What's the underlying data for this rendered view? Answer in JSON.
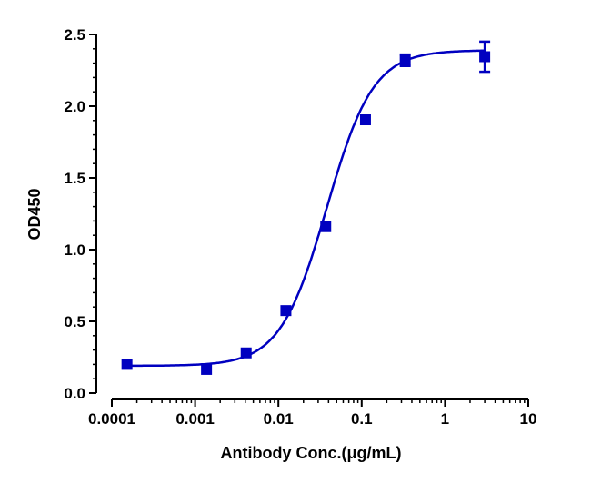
{
  "chart_data": {
    "type": "scatter",
    "xlabel": "Antibody Conc.(μg/mL)",
    "ylabel": "OD450",
    "xscale": "log",
    "xlim": [
      0.0001,
      10
    ],
    "ylim": [
      0,
      2.5
    ],
    "xticks": [
      "0.0001",
      "0.001",
      "0.01",
      "0.1",
      "1",
      "10"
    ],
    "yticks": [
      "0.0",
      "0.5",
      "1.0",
      "1.5",
      "2.0",
      "2.5"
    ],
    "grid": false,
    "color": "#0000C0",
    "points": [
      {
        "x": 0.000152,
        "y": 0.2,
        "err": 0.01
      },
      {
        "x": 0.00137,
        "y": 0.165,
        "err": 0.01
      },
      {
        "x": 0.0041,
        "y": 0.28,
        "err": 0.01
      },
      {
        "x": 0.0123,
        "y": 0.575,
        "err": 0.01
      },
      {
        "x": 0.037,
        "y": 1.16,
        "err": 0.01
      },
      {
        "x": 0.111,
        "y": 1.905,
        "err": 0.01
      },
      {
        "x": 0.333,
        "y": 2.32,
        "err": 0.04
      },
      {
        "x": 3.0,
        "y": 2.345,
        "err": 0.105
      }
    ],
    "fit": {
      "model": "4PL",
      "bottom": 0.19,
      "top": 2.39,
      "ec50": 0.038,
      "hill": 1.55
    }
  }
}
